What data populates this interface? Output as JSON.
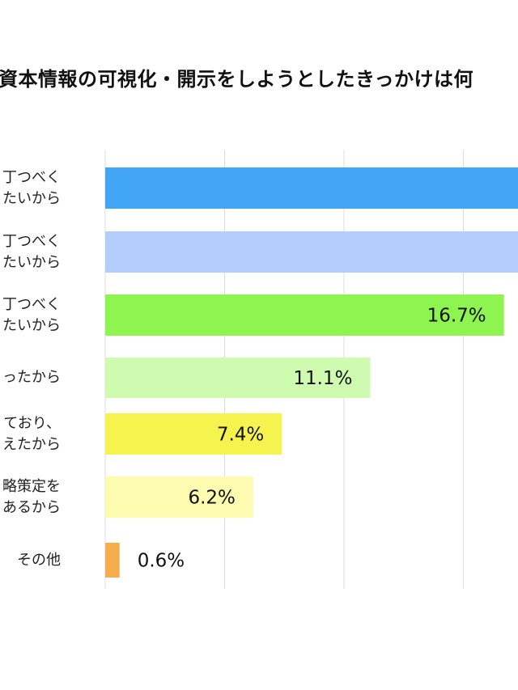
{
  "chart_data": {
    "type": "bar",
    "orientation": "horizontal",
    "title": "資本情報の可視化・開示をしようとしたきっかけは何",
    "xlabel": "",
    "ylabel": "",
    "xlim": [
      0,
      20
    ],
    "grid": true,
    "gridlines": [
      0,
      5,
      10,
      15
    ],
    "categories": [
      [
        "丁つべく",
        "たいから"
      ],
      [
        "丁つべく",
        "たいから"
      ],
      [
        "丁つべく",
        "たいから"
      ],
      [
        "ったから"
      ],
      [
        "ており、",
        "えたから"
      ],
      [
        "略策定を",
        "あるから"
      ],
      [
        "その他"
      ]
    ],
    "values": [
      null,
      null,
      16.7,
      11.1,
      7.4,
      6.2,
      0.6
    ],
    "value_labels": [
      "",
      "",
      "16.7%",
      "11.1%",
      "7.4%",
      "6.2%",
      "0.6%"
    ],
    "colors": [
      "#42a5f5",
      "#b3cdfd",
      "#8ef44f",
      "#cefbb0",
      "#f5f44e",
      "#fdfbb0",
      "#f5ac4c"
    ]
  }
}
